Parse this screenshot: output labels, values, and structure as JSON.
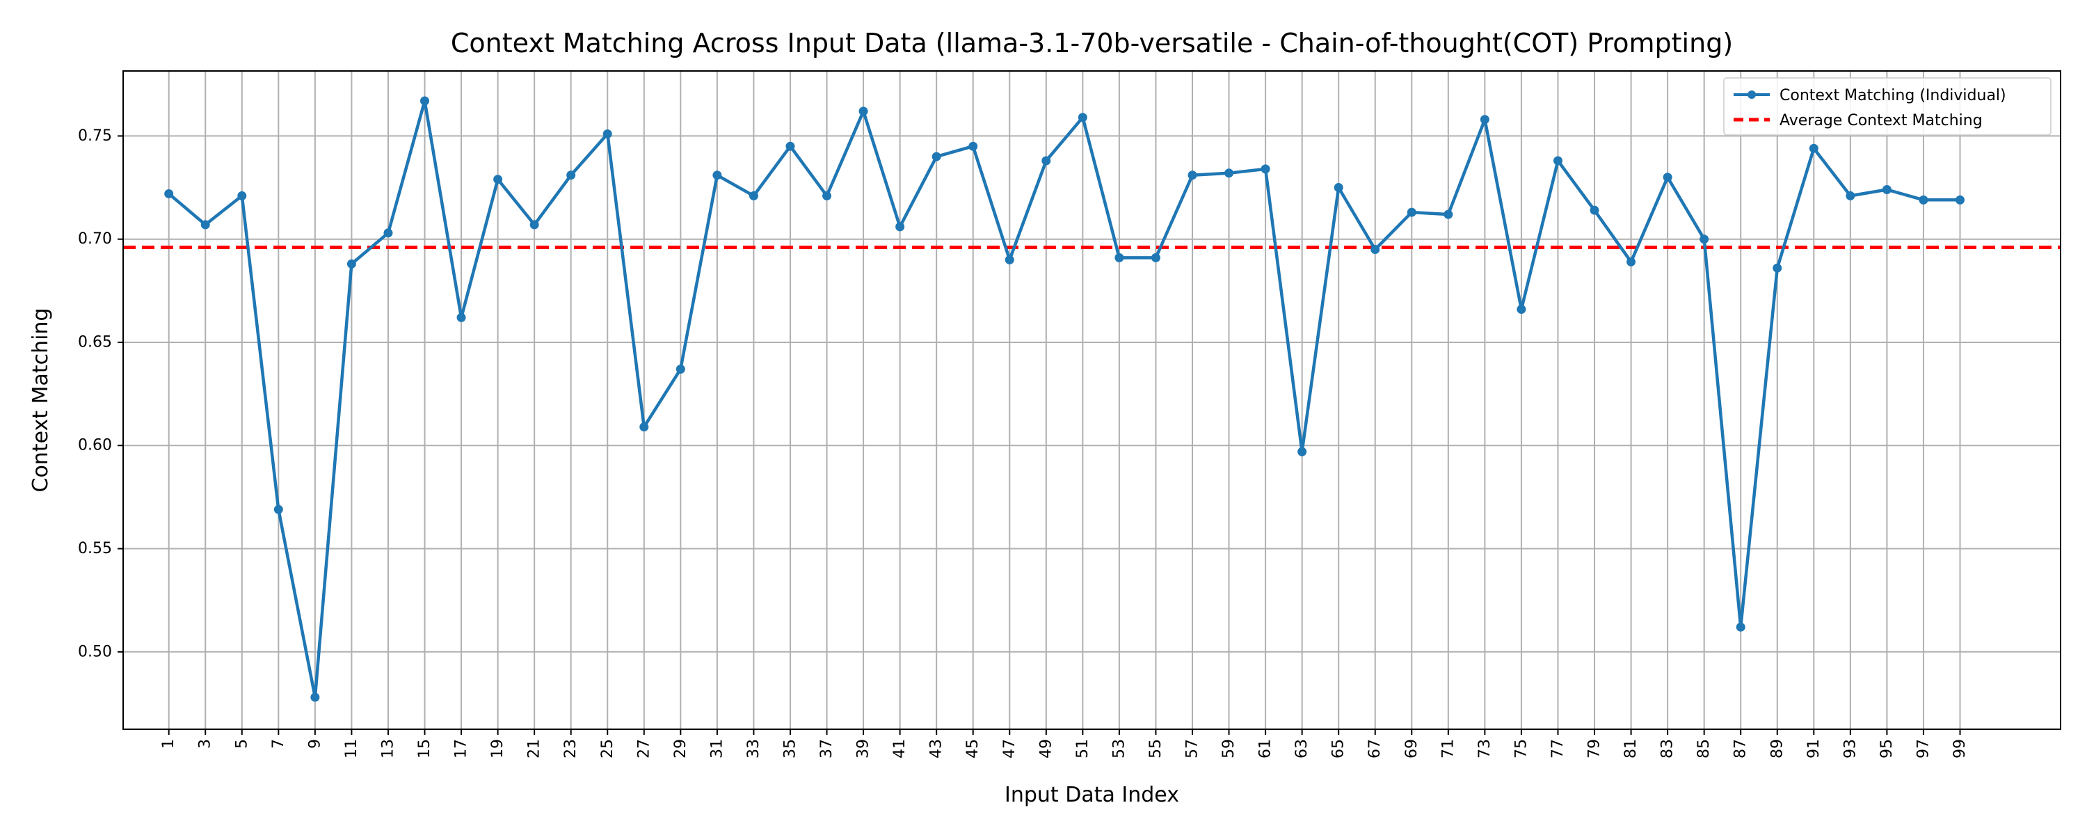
{
  "chart_data": {
    "type": "line",
    "title": "Context Matching Across Input Data (llama-3.1-70b-versatile - Chain-of-thought(COT) Prompting)",
    "xlabel": "Input Data Index",
    "ylabel": "Context Matching",
    "xlim": [
      -1.5,
      104.5
    ],
    "ylim": [
      0.4625,
      0.7815
    ],
    "x_ticks": [
      1,
      3,
      5,
      7,
      9,
      11,
      13,
      15,
      17,
      19,
      21,
      23,
      25,
      27,
      29,
      31,
      33,
      35,
      37,
      39,
      41,
      43,
      45,
      47,
      49,
      51,
      53,
      55,
      57,
      59,
      61,
      63,
      65,
      67,
      69,
      71,
      73,
      75,
      77,
      79,
      81,
      83,
      85,
      87,
      89,
      91,
      93,
      95,
      97,
      99
    ],
    "y_ticks": [
      0.5,
      0.55,
      0.6,
      0.65,
      0.7,
      0.75
    ],
    "y_tick_labels": [
      "0.50",
      "0.55",
      "0.60",
      "0.65",
      "0.70",
      "0.75"
    ],
    "grid": true,
    "legend_position": "top-right",
    "series": [
      {
        "name": "Context Matching (Individual)",
        "style": "line-with-markers",
        "color": "#1f77b4",
        "x": [
          1,
          3,
          5,
          7,
          9,
          11,
          13,
          15,
          17,
          19,
          21,
          23,
          25,
          27,
          29,
          31,
          33,
          35,
          37,
          39,
          41,
          43,
          45,
          47,
          49,
          51,
          53,
          55,
          57,
          59,
          61,
          63,
          65,
          67,
          69,
          71,
          73,
          75,
          77,
          79,
          81,
          83,
          85,
          87,
          89,
          91,
          93,
          95,
          97,
          99
        ],
        "values": [
          0.722,
          0.707,
          0.721,
          0.569,
          0.478,
          0.688,
          0.703,
          0.767,
          0.662,
          0.729,
          0.707,
          0.731,
          0.751,
          0.609,
          0.637,
          0.731,
          0.721,
          0.745,
          0.721,
          0.762,
          0.706,
          0.74,
          0.745,
          0.69,
          0.738,
          0.759,
          0.691,
          0.691,
          0.731,
          0.732,
          0.734,
          0.597,
          0.725,
          0.695,
          0.713,
          0.712,
          0.758,
          0.666,
          0.738,
          0.714,
          0.689,
          0.73,
          0.7,
          0.512,
          0.686,
          0.744,
          0.721,
          0.724,
          0.719,
          0.719
        ]
      },
      {
        "name": "Average Context Matching",
        "style": "dashed-horizontal",
        "color": "#ff0000",
        "value": 0.696
      }
    ]
  }
}
